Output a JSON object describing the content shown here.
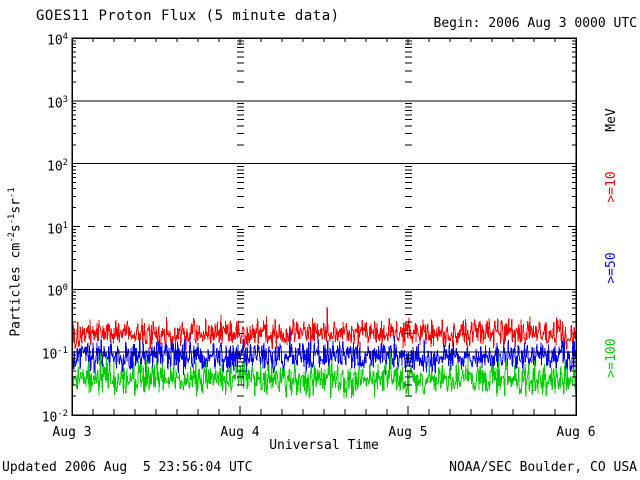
{
  "header": {
    "title": "GOES11 Proton Flux (5 minute data)",
    "begin_label": "Begin: 2006 Aug 3 0000 UTC"
  },
  "footer": {
    "updated": "Updated 2006 Aug  5 23:56:04 UTC",
    "source": "NOAA/SEC Boulder, CO USA"
  },
  "chart_data": {
    "type": "line",
    "title": "GOES11 Proton Flux (5 minute data)",
    "xlabel": "Universal Time",
    "ylabel": "Particles cm^-2s^-1sr^-1",
    "units_label": "MeV",
    "x_range": [
      "2006 Aug 3 0000 UTC",
      "2006 Aug 6 0000 UTC"
    ],
    "xticks": [
      "Aug 3",
      "Aug 4",
      "Aug 5",
      "Aug 6"
    ],
    "yticks": [
      "10^4",
      "10^3",
      "10^2",
      "10^1",
      "10^0",
      "10^-1",
      "10^-2"
    ],
    "ylim_log10": [
      -2,
      4
    ],
    "grid": {
      "solid_hlines_log10": [
        3,
        2,
        0,
        -1
      ],
      "dashed_hlines_log10": [
        1
      ],
      "interior_day_tick_columns": [
        "Aug 4",
        "Aug 5"
      ],
      "hour_tick_step_hours": 3
    },
    "sample_interval_minutes": 5,
    "samples_per_series": 864,
    "series": [
      {
        "name": ">=10",
        "units": "MeV",
        "color": "#ff0000",
        "log10_mean": -0.7,
        "log10_spread": 0.28,
        "clamp_log10": [
          -0.98,
          -0.28
        ],
        "approx_flux_range": [
          0.11,
          0.5
        ],
        "seed": 101
      },
      {
        "name": ">=50",
        "units": "MeV",
        "color": "#0000ff",
        "log10_mean": -1.07,
        "log10_spread": 0.3,
        "clamp_log10": [
          -1.42,
          -0.64
        ],
        "approx_flux_range": [
          0.04,
          0.22
        ],
        "seed": 202
      },
      {
        "name": ">=100",
        "units": "MeV",
        "color": "#00cc00",
        "log10_mean": -1.43,
        "log10_spread": 0.32,
        "clamp_log10": [
          -1.76,
          -0.98
        ],
        "approx_flux_range": [
          0.017,
          0.1
        ],
        "seed": 303
      }
    ]
  }
}
